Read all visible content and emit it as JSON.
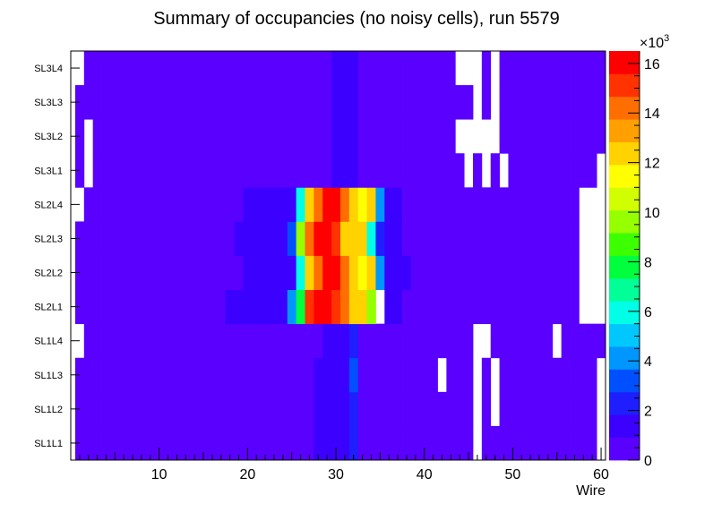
{
  "chart_data": {
    "type": "heatmap",
    "title": "Summary of occupancies (no noisy cells), run 5579",
    "xlabel": "Wire",
    "ylabel": "",
    "xlim": [
      0,
      60.5
    ],
    "x_ticks": [
      10,
      20,
      30,
      40,
      50,
      60
    ],
    "y_categories": [
      "SL1L1",
      "SL1L2",
      "SL1L3",
      "SL1L4",
      "SL2L1",
      "SL2L2",
      "SL2L3",
      "SL2L4",
      "SL3L1",
      "SL3L2",
      "SL3L3",
      "SL3L4"
    ],
    "zlim": [
      0,
      16500
    ],
    "z_ticks": [
      0,
      2,
      4,
      6,
      8,
      10,
      12,
      14,
      16
    ],
    "z_exponent_label": "×10",
    "z_exponent": "3",
    "palette": [
      "#5a00ff",
      "#3c00ff",
      "#1e1eff",
      "#0050ff",
      "#0096ff",
      "#00c8ff",
      "#00ffe6",
      "#00ff96",
      "#00ff3c",
      "#3cff00",
      "#96ff00",
      "#d2ff00",
      "#ffff00",
      "#ffd200",
      "#ffa000",
      "#ff6e00",
      "#ff3200",
      "#ff0000"
    ],
    "rows": [
      {
        "y": "SL1L1",
        "base": 400,
        "empty": [
          46,
          60
        ],
        "segments": [
          [
            28,
            31,
            1500
          ],
          [
            32,
            32,
            2200
          ]
        ]
      },
      {
        "y": "SL1L2",
        "base": 400,
        "empty": [
          46,
          48,
          60
        ],
        "segments": [
          [
            28,
            31,
            1500
          ],
          [
            32,
            32,
            2200
          ],
          [
            49,
            49,
            900
          ]
        ]
      },
      {
        "y": "SL1L3",
        "base": 400,
        "empty": [
          42,
          46,
          48,
          60
        ],
        "segments": [
          [
            28,
            31,
            1500
          ],
          [
            32,
            32,
            3000
          ]
        ]
      },
      {
        "y": "SL1L4",
        "base": 400,
        "empty": [
          1,
          46,
          47,
          55
        ],
        "segments": [
          [
            29,
            31,
            1500
          ],
          [
            32,
            32,
            2200
          ]
        ]
      },
      {
        "y": "SL2L1",
        "base": 400,
        "empty": [
          58,
          59,
          60
        ],
        "segments": [
          [
            18,
            24,
            1500
          ],
          [
            25,
            25,
            3800
          ],
          [
            26,
            26,
            8200
          ],
          [
            27,
            27,
            15000
          ],
          [
            28,
            28,
            16500
          ],
          [
            29,
            29,
            16500
          ],
          [
            30,
            30,
            15500
          ],
          [
            31,
            31,
            14000
          ],
          [
            32,
            32,
            12500
          ],
          [
            33,
            33,
            12000
          ],
          [
            34,
            34,
            10000
          ],
          [
            35,
            35,
            0
          ],
          [
            36,
            36,
            1700
          ],
          [
            37,
            37,
            1700
          ]
        ]
      },
      {
        "y": "SL2L2",
        "base": 400,
        "empty": [
          58,
          59,
          60
        ],
        "segments": [
          [
            20,
            25,
            1500
          ],
          [
            26,
            26,
            5500
          ],
          [
            27,
            27,
            12000
          ],
          [
            28,
            28,
            14500
          ],
          [
            29,
            29,
            16500
          ],
          [
            30,
            30,
            16500
          ],
          [
            31,
            31,
            14500
          ],
          [
            32,
            32,
            12000
          ],
          [
            33,
            33,
            11500
          ],
          [
            34,
            34,
            12000
          ],
          [
            35,
            35,
            4000
          ],
          [
            36,
            38,
            1700
          ]
        ]
      },
      {
        "y": "SL2L3",
        "base": 400,
        "empty": [
          58,
          59,
          60
        ],
        "segments": [
          [
            19,
            24,
            1500
          ],
          [
            25,
            25,
            3500
          ],
          [
            26,
            26,
            10000
          ],
          [
            27,
            27,
            14500
          ],
          [
            28,
            28,
            16500
          ],
          [
            29,
            29,
            16500
          ],
          [
            30,
            30,
            15000
          ],
          [
            31,
            31,
            12500
          ],
          [
            32,
            32,
            12000
          ],
          [
            33,
            33,
            12500
          ],
          [
            34,
            34,
            6000
          ],
          [
            35,
            35,
            2000
          ],
          [
            36,
            37,
            1700
          ]
        ]
      },
      {
        "y": "SL2L4",
        "base": 400,
        "empty": [
          1,
          58,
          59,
          60
        ],
        "segments": [
          [
            20,
            25,
            1500
          ],
          [
            26,
            26,
            5500
          ],
          [
            27,
            27,
            12000
          ],
          [
            28,
            28,
            14500
          ],
          [
            29,
            29,
            16500
          ],
          [
            30,
            30,
            16500
          ],
          [
            31,
            31,
            14500
          ],
          [
            32,
            32,
            12000
          ],
          [
            33,
            33,
            11500
          ],
          [
            34,
            34,
            12500
          ],
          [
            35,
            35,
            4000
          ],
          [
            36,
            37,
            1700
          ]
        ]
      },
      {
        "y": "SL3L1",
        "base": 400,
        "empty": [
          2,
          45,
          47,
          49,
          60
        ],
        "segments": [
          [
            30,
            32,
            1500
          ]
        ]
      },
      {
        "y": "SL3L2",
        "base": 400,
        "empty": [
          2,
          44,
          45,
          46,
          47,
          48
        ],
        "segments": [
          [
            30,
            32,
            1500
          ]
        ]
      },
      {
        "y": "SL3L3",
        "base": 400,
        "empty": [
          46,
          48
        ],
        "segments": [
          [
            30,
            32,
            1500
          ]
        ]
      },
      {
        "y": "SL3L4",
        "base": 400,
        "empty": [
          1,
          44,
          45,
          46,
          48
        ],
        "segments": [
          [
            30,
            32,
            1500
          ]
        ]
      }
    ]
  }
}
